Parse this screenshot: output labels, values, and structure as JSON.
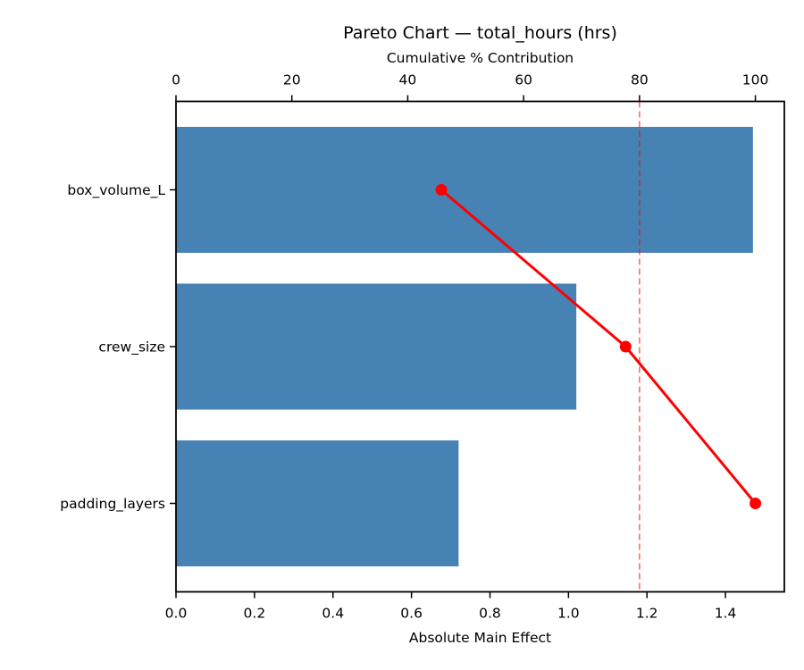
{
  "chart_data": {
    "type": "bar",
    "subtype": "pareto",
    "orientation": "horizontal",
    "title": "Pareto Chart — total_hours (hrs)",
    "top_axis_label": "Cumulative % Contribution",
    "xlabel": "Absolute Main Effect",
    "ylabel": "",
    "categories": [
      "box_volume_L",
      "crew_size",
      "padding_layers"
    ],
    "values": [
      1.47,
      1.02,
      0.72
    ],
    "series": [
      {
        "name": "Absolute Main Effect",
        "type": "bar",
        "values": [
          1.47,
          1.02,
          0.72
        ]
      },
      {
        "name": "Cumulative % Contribution",
        "type": "line",
        "values": [
          45.8,
          77.6,
          100.0
        ]
      }
    ],
    "threshold_line": {
      "value": 80,
      "axis": "top",
      "style": "dashed"
    },
    "xlim": [
      0,
      1.55
    ],
    "top_xlim": [
      0,
      105
    ],
    "xticks": [
      "0.0",
      "0.2",
      "0.4",
      "0.6",
      "0.8",
      "1.0",
      "1.2",
      "1.4"
    ],
    "xtick_values": [
      0,
      0.2,
      0.4,
      0.6,
      0.8,
      1.0,
      1.2,
      1.4
    ],
    "top_ticks": [
      "0",
      "20",
      "40",
      "60",
      "80",
      "100"
    ],
    "top_tick_values": [
      0,
      20,
      40,
      60,
      80,
      100
    ],
    "grid": false,
    "legend": "none",
    "colors": {
      "bar": "#4682B4",
      "line": "#FF0000",
      "marker": "#FF0000",
      "threshold": "rgba(255,0,0,0.55)",
      "axis": "#000000",
      "text": "#000000",
      "background": "#FFFFFF"
    }
  }
}
